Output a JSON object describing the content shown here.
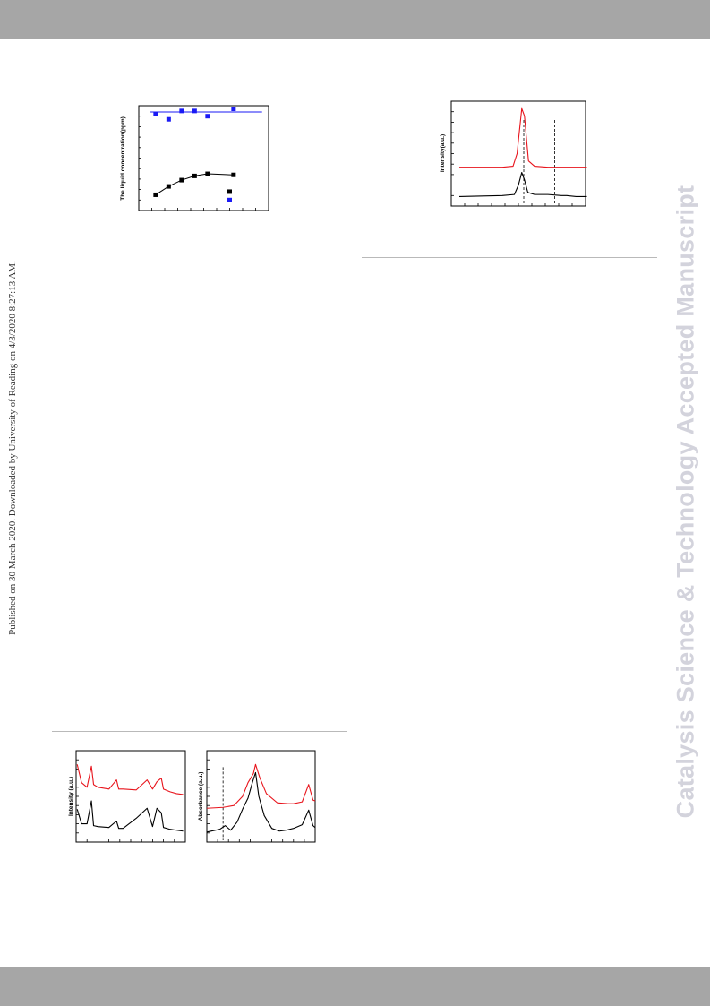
{
  "page": {
    "side_note": "Published on 30 March 2020. Downloaded by University of Reading on 4/3/2020 8:27:13 AM.",
    "watermark": "Catalysis Science & Technology Accepted Manuscript"
  },
  "colors": {
    "band": "#a6a6a6",
    "blue": "#1a1af5",
    "red": "#e8141c",
    "black": "#000000",
    "watermark": "#d3d3dc"
  },
  "chart_data": [
    {
      "type": "scatter",
      "title": "",
      "ylabel": "The liquid concentration(ppm)",
      "xlabel": "",
      "xlim": [
        0,
        10
      ],
      "ylim": [
        0,
        10
      ],
      "series": [
        {
          "color": "#1a1af5",
          "connected": false,
          "x": [
            1.3,
            2.3,
            3.3,
            4.3,
            5.3,
            7.3
          ],
          "y": [
            9.2,
            8.7,
            9.5,
            9.5,
            9.0,
            9.7
          ],
          "fit_line": [
            9.4,
            9.4
          ]
        },
        {
          "color": "#000000",
          "connected": true,
          "x": [
            1.3,
            2.3,
            3.3,
            4.3,
            5.3,
            7.3
          ],
          "y": [
            1.5,
            2.3,
            2.9,
            3.3,
            3.5,
            3.4
          ]
        },
        {
          "color": "#000000",
          "connected": false,
          "x": [
            7.0
          ],
          "y": [
            1.8
          ]
        },
        {
          "color": "#1a1af5",
          "connected": false,
          "x": [
            7.0
          ],
          "y": [
            1.0
          ]
        }
      ]
    },
    {
      "type": "line",
      "title": "",
      "ylabel": "Intensity(a.u.)",
      "xlabel": "",
      "xlim": [
        0,
        10
      ],
      "ylim": [
        0,
        10
      ],
      "series": [
        {
          "color": "#e8141c",
          "x": [
            0.6,
            3.8,
            4.6,
            4.9,
            5.25,
            5.45,
            5.75,
            6.2,
            7.2,
            8.2,
            8.6,
            10.1
          ],
          "y": [
            3.7,
            3.7,
            3.8,
            5.0,
            9.3,
            8.6,
            4.3,
            3.8,
            3.7,
            3.7,
            3.7,
            3.7
          ]
        },
        {
          "color": "#000000",
          "x": [
            0.6,
            3.8,
            4.7,
            5.0,
            5.25,
            5.45,
            5.7,
            6.2,
            7.2,
            8.2,
            8.6,
            9.3,
            10.1
          ],
          "y": [
            0.9,
            1.0,
            1.1,
            2.0,
            3.2,
            2.5,
            1.3,
            1.1,
            1.1,
            1.0,
            1.0,
            0.9,
            0.9
          ]
        }
      ],
      "reference_lines": [
        5.4,
        7.7
      ]
    },
    {
      "type": "line",
      "title": "",
      "ylabel": "Intensity (a.u.)",
      "xlabel": "",
      "xlim": [
        0,
        10
      ],
      "ylim": [
        0,
        10
      ],
      "series": [
        {
          "color": "#e8141c",
          "x": [
            0.1,
            0.5,
            1.0,
            1.4,
            1.6,
            2.0,
            3.0,
            3.7,
            3.9,
            4.3,
            5.5,
            6.5,
            7.0,
            7.4,
            7.8,
            8.0,
            8.6,
            9.2,
            9.8
          ],
          "y": [
            8.5,
            6.5,
            6.0,
            8.3,
            6.3,
            6.0,
            5.8,
            6.8,
            5.8,
            5.8,
            5.7,
            6.8,
            5.8,
            6.6,
            7.0,
            5.8,
            5.5,
            5.3,
            5.2
          ]
        },
        {
          "color": "#000000",
          "x": [
            0.1,
            0.5,
            1.0,
            1.4,
            1.6,
            2.0,
            3.0,
            3.7,
            3.9,
            4.3,
            5.5,
            6.5,
            7.0,
            7.4,
            7.8,
            8.0,
            8.6,
            9.2,
            9.8
          ],
          "y": [
            3.6,
            2.0,
            2.0,
            4.5,
            1.8,
            1.7,
            1.6,
            2.3,
            1.5,
            1.5,
            2.6,
            3.7,
            1.7,
            3.7,
            3.2,
            1.6,
            1.4,
            1.3,
            1.2
          ]
        }
      ]
    },
    {
      "type": "line",
      "title": "",
      "ylabel": "Absorbance (a.u.)",
      "xlabel": "",
      "xlim": [
        0,
        10
      ],
      "ylim": [
        0,
        10
      ],
      "series": [
        {
          "color": "#e8141c",
          "x": [
            0.0,
            1.5,
            2.5,
            3.3,
            3.8,
            4.3,
            4.5,
            4.9,
            5.5,
            6.5,
            7.5,
            8.0,
            8.8,
            9.4,
            9.8,
            10.0
          ],
          "y": [
            3.7,
            3.8,
            4.0,
            5.0,
            6.5,
            7.5,
            8.5,
            7.0,
            5.3,
            4.3,
            4.2,
            4.2,
            4.4,
            6.3,
            4.6,
            4.5
          ]
        },
        {
          "color": "#000000",
          "x": [
            0.0,
            1.2,
            1.7,
            2.2,
            2.8,
            3.3,
            3.8,
            4.2,
            4.5,
            4.8,
            5.3,
            6.0,
            6.7,
            7.3,
            8.0,
            8.8,
            9.4,
            9.8,
            10.0
          ],
          "y": [
            1.1,
            1.4,
            1.8,
            1.3,
            2.2,
            3.6,
            4.8,
            6.5,
            7.6,
            5.0,
            2.9,
            1.5,
            1.2,
            1.3,
            1.5,
            1.9,
            3.5,
            1.8,
            1.6
          ]
        }
      ],
      "reference_lines": [
        1.5
      ]
    }
  ]
}
